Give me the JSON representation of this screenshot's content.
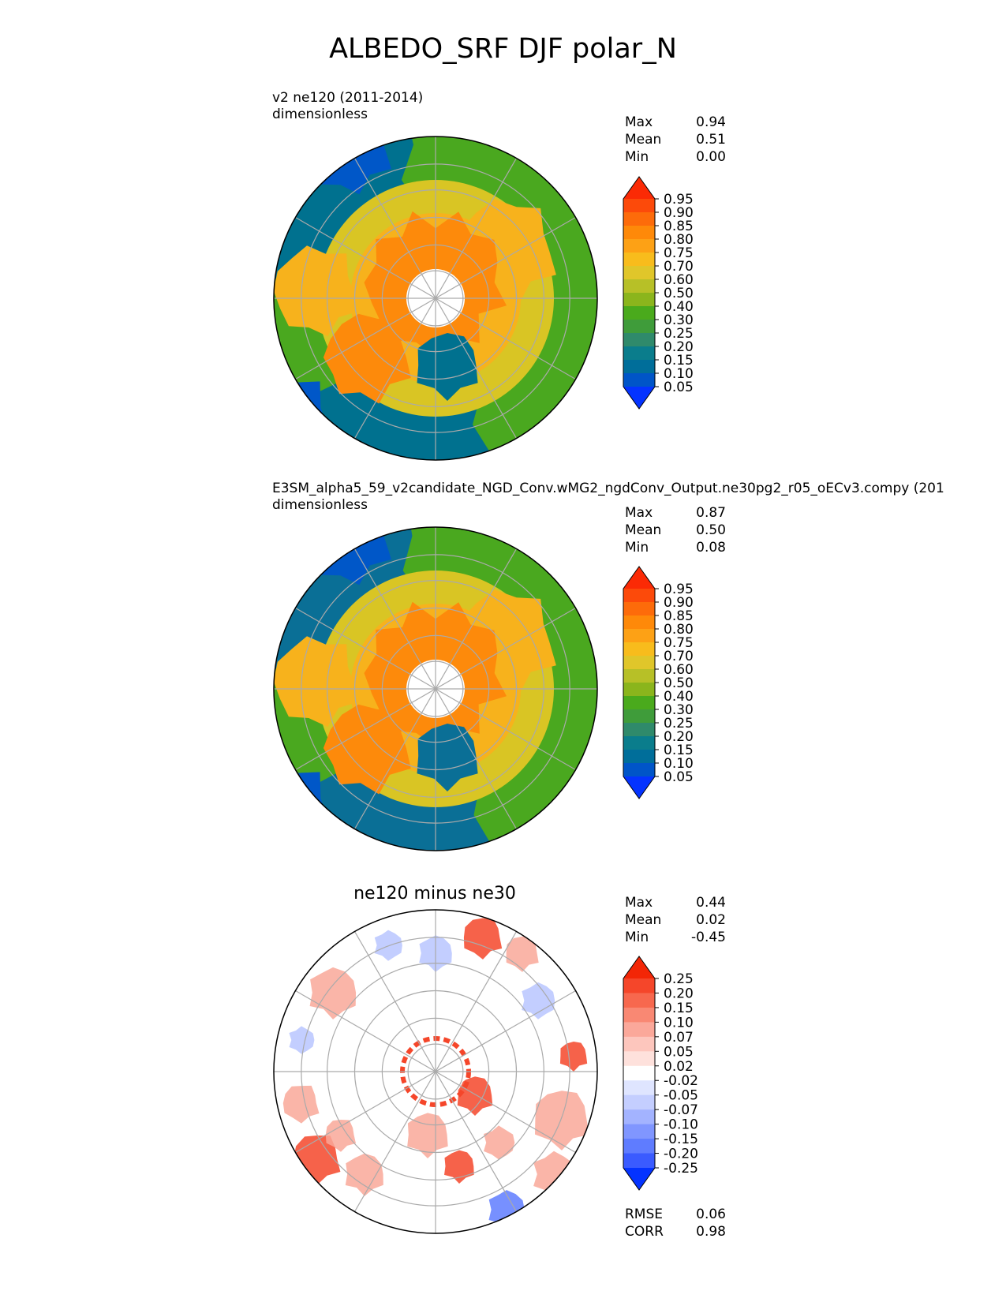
{
  "figure_title": "ALBEDO_SRF DJF polar_N",
  "chart_data": [
    {
      "type": "heatmap",
      "projection": "north polar stereographic",
      "title": "v2 ne120 (2011-2014)",
      "units": "dimensionless",
      "stats": {
        "max_label": "Max",
        "max": "0.94",
        "mean_label": "Mean",
        "mean": "0.51",
        "min_label": "Min",
        "min": "0.00"
      },
      "colorbar_levels": [
        "0.05",
        "0.10",
        "0.15",
        "0.20",
        "0.25",
        "0.30",
        "0.40",
        "0.50",
        "0.60",
        "0.70",
        "0.75",
        "0.80",
        "0.85",
        "0.90",
        "0.95"
      ],
      "colorbar_colors": [
        "#0433ff",
        "#0055c8",
        "#006e9a",
        "#0a7d8c",
        "#2f8a6b",
        "#3f9c3a",
        "#4aaa1c",
        "#8bb51c",
        "#b7c027",
        "#e0c62a",
        "#f8bc1c",
        "#fda115",
        "#fe8909",
        "#fd6b0a",
        "#fc4a0a",
        "#fb2a05"
      ],
      "field_colors": {
        "ocean": "#00718f",
        "open_water": "#0057c8",
        "midlat": "#4aa81f",
        "subarctic": "#d9c524",
        "arctic_land": "#f7b21c",
        "ice": "#fd8a0b",
        "pole_hole": "#ffffff"
      }
    },
    {
      "type": "heatmap",
      "projection": "north polar stereographic",
      "title": "E3SM_alpha5_59_v2candidate_NGD_Conv.wMG2_ngdConv_Output.ne30pg2_r05_oECv3.compy (201",
      "units": "dimensionless",
      "stats": {
        "max_label": "Max",
        "max": "0.87",
        "mean_label": "Mean",
        "mean": "0.50",
        "min_label": "Min",
        "min": "0.08"
      },
      "colorbar_levels": [
        "0.05",
        "0.10",
        "0.15",
        "0.20",
        "0.25",
        "0.30",
        "0.40",
        "0.50",
        "0.60",
        "0.70",
        "0.75",
        "0.80",
        "0.85",
        "0.90",
        "0.95"
      ],
      "colorbar_colors": [
        "#0433ff",
        "#0055c8",
        "#006e9a",
        "#0a7d8c",
        "#2f8a6b",
        "#3f9c3a",
        "#4aaa1c",
        "#8bb51c",
        "#b7c027",
        "#e0c62a",
        "#f8bc1c",
        "#fda115",
        "#fe8909",
        "#fd6b0a",
        "#fc4a0a",
        "#fb2a05"
      ],
      "field_colors": {
        "ocean": "#0a6f96",
        "open_water": "#0057c8",
        "midlat": "#4aa81f",
        "subarctic": "#d9c524",
        "arctic_land": "#f7b21c",
        "ice": "#fd8a0b",
        "pole_hole": "#ffffff"
      }
    },
    {
      "type": "heatmap",
      "projection": "north polar stereographic",
      "title": "ne120 minus ne30",
      "units": "",
      "stats": {
        "max_label": "Max",
        "max": "0.44",
        "mean_label": "Mean",
        "mean": "0.02",
        "min_label": "Min",
        "min": "-0.45"
      },
      "metrics": {
        "rmse_label": "RMSE",
        "rmse": "0.06",
        "corr_label": "CORR",
        "corr": "0.98"
      },
      "colorbar_levels": [
        "-0.25",
        "-0.20",
        "-0.15",
        "-0.10",
        "-0.07",
        "-0.05",
        "-0.02",
        "0.02",
        "0.05",
        "0.07",
        "0.10",
        "0.15",
        "0.20",
        "0.25"
      ],
      "colorbar_colors": [
        "#0433ff",
        "#3a5bff",
        "#5f7cff",
        "#8096ff",
        "#a3b3ff",
        "#c4ceff",
        "#dfe5ff",
        "#ffffff",
        "#fee1dc",
        "#fdc6bd",
        "#fba89a",
        "#f98873",
        "#f7684e",
        "#f5462a",
        "#f32606"
      ],
      "field_colors": {
        "neutral": "#ffffff",
        "warm": "#f9a899",
        "hot": "#f5462a",
        "cool": "#b9c6ff",
        "cold": "#5f7cff"
      }
    }
  ]
}
